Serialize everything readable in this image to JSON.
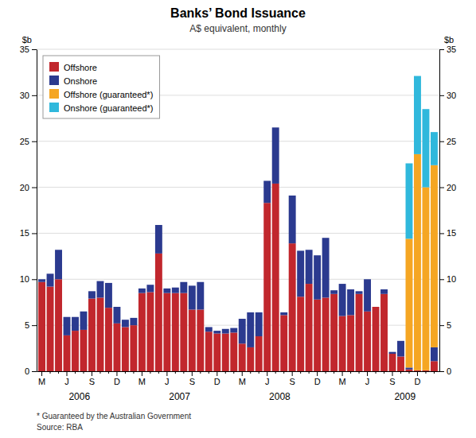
{
  "chart_data": {
    "type": "bar",
    "stacked": true,
    "title": "Banks’ Bond Issuance",
    "subtitle": "A$ equivalent, monthly",
    "ylabel": "$b",
    "y2label": "$b",
    "categories": [
      "M",
      null,
      null,
      "J",
      null,
      null,
      "S",
      null,
      null,
      "D",
      null,
      null,
      "M",
      null,
      null,
      "J",
      null,
      null,
      "S",
      null,
      null,
      "D",
      null,
      null,
      "M",
      null,
      null,
      "J",
      null,
      null,
      "S",
      null,
      null,
      "D",
      null,
      null,
      "M",
      null,
      null,
      "J",
      null,
      null,
      "S",
      null,
      null,
      "D",
      null,
      null
    ],
    "series": [
      {
        "name": "Offshore",
        "color": "#C1272D",
        "values": [
          9.7,
          9.2,
          10.0,
          3.9,
          4.4,
          4.5,
          7.9,
          8.0,
          6.9,
          5.2,
          4.8,
          5.0,
          8.5,
          8.6,
          12.8,
          8.5,
          8.5,
          8.5,
          6.7,
          6.7,
          4.3,
          4.1,
          4.1,
          4.2,
          3.0,
          2.6,
          3.8,
          18.3,
          20.4,
          6.1,
          13.9,
          8.1,
          9.5,
          7.8,
          8.0,
          8.4,
          6.0,
          6.1,
          8.4,
          6.5,
          7.0,
          8.4,
          1.9,
          1.6,
          0.2,
          0.1,
          0.1,
          1.1
        ]
      },
      {
        "name": "Onshore",
        "color": "#2B3A8F",
        "values": [
          0.3,
          1.4,
          3.2,
          2.0,
          1.5,
          2.0,
          0.8,
          1.8,
          2.7,
          1.8,
          0.8,
          0.8,
          0.5,
          0.8,
          3.1,
          0.5,
          0.6,
          1.2,
          2.6,
          3.0,
          0.5,
          0.3,
          0.5,
          0.5,
          2.7,
          3.8,
          2.6,
          2.4,
          6.1,
          0.3,
          5.2,
          5.0,
          3.7,
          4.8,
          6.5,
          0.4,
          3.5,
          2.8,
          0.3,
          3.5,
          0.0,
          0.5,
          0.2,
          1.7,
          0.2,
          0.0,
          0.0,
          1.5
        ]
      },
      {
        "name": "Offshore (guaranteed*)",
        "color": "#F5A623",
        "values": [
          0,
          0,
          0,
          0,
          0,
          0,
          0,
          0,
          0,
          0,
          0,
          0,
          0,
          0,
          0,
          0,
          0,
          0,
          0,
          0,
          0,
          0,
          0,
          0,
          0,
          0,
          0,
          0,
          0,
          0,
          0,
          0,
          0,
          0,
          0,
          0,
          0,
          0,
          0,
          0,
          0,
          0,
          0,
          0,
          14.0,
          23.5,
          19.9,
          19.8
        ]
      },
      {
        "name": "Onshore (guaranteed*)",
        "color": "#30B8DC",
        "values": [
          0,
          0,
          0,
          0,
          0,
          0,
          0,
          0,
          0,
          0,
          0,
          0,
          0,
          0,
          0,
          0,
          0,
          0,
          0,
          0,
          0,
          0,
          0,
          0,
          0,
          0,
          0,
          0,
          0,
          0,
          0,
          0,
          0,
          0,
          0,
          0,
          0,
          0,
          0,
          0,
          0,
          0,
          0,
          0,
          8.2,
          8.5,
          8.5,
          3.6
        ]
      }
    ],
    "ylim": [
      0,
      35
    ],
    "yticks": [
      0,
      5,
      10,
      15,
      20,
      25,
      30,
      35
    ],
    "y2lim": [
      0,
      35
    ],
    "y2ticks": [
      0,
      5,
      10,
      15,
      20,
      25,
      30,
      35
    ],
    "grid": true,
    "legend": "upper left",
    "annotations": [
      {
        "text": "2006",
        "x": 4.5
      },
      {
        "text": "2007",
        "x": 16.5
      },
      {
        "text": "2008",
        "x": 28.5
      },
      {
        "text": "2009",
        "x": 43.5
      }
    ],
    "footnotes": [
      "*   Guaranteed by the Australian Government",
      "Source: RBA"
    ]
  }
}
